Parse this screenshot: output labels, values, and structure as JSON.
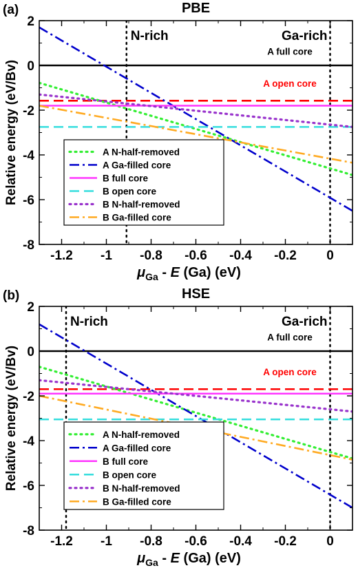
{
  "chart_data": [
    {
      "type": "line",
      "panel_label": "(a)",
      "title": "PBE",
      "ylabel": "Relative energy (eV/Bv)",
      "xlabel_mu": "μ",
      "xlabel_sub": "Ga",
      "xlabel_mid": " - ",
      "xlabel_e": "E",
      "xlabel_rest": " (Ga) (eV)",
      "xlim": [
        -1.3,
        0.1
      ],
      "ylim": [
        -8,
        2
      ],
      "xticks": [
        -1.2,
        -1,
        -0.8,
        -0.6,
        -0.4,
        -0.2,
        0
      ],
      "yticks": [
        -8,
        -6,
        -4,
        -2,
        0,
        2
      ],
      "xtick_labels": [
        "-1.2",
        "-1",
        "-0.8",
        "-0.6",
        "-0.4",
        "-0.2",
        "0"
      ],
      "ytick_labels": [
        "-8",
        "-6",
        "-4",
        "-2",
        "0",
        "2"
      ],
      "vlines": [
        {
          "x": -0.91,
          "label": "N-rich"
        },
        {
          "x": 0,
          "label": "Ga-rich"
        }
      ],
      "legend_placement": "lower-left",
      "series": [
        {
          "name": "A full core",
          "inline_label": true,
          "color": "#000000",
          "dash": "solid",
          "x": [
            -1.3,
            0.1
          ],
          "y": [
            0.0,
            0.0
          ]
        },
        {
          "name": "A open core",
          "inline_label": true,
          "color": "#ff0000",
          "dash": "dashed",
          "x": [
            -1.3,
            0.1
          ],
          "y": [
            -1.58,
            -1.58
          ]
        },
        {
          "name": "A N-half-removed",
          "inline_label": false,
          "color": "#33ee33",
          "dash": "dotted",
          "x": [
            -1.3,
            0.1
          ],
          "y": [
            -0.78,
            -4.9
          ]
        },
        {
          "name": "A Ga-filled core",
          "inline_label": false,
          "color": "#0000cc",
          "dash": "dashdot",
          "x": [
            -1.3,
            0.1
          ],
          "y": [
            1.7,
            -6.5
          ]
        },
        {
          "name": "B full core",
          "inline_label": false,
          "color": "#ff33ff",
          "dash": "solid",
          "x": [
            -1.3,
            0.1
          ],
          "y": [
            -1.8,
            -1.8
          ]
        },
        {
          "name": "B open core",
          "inline_label": false,
          "color": "#33dddd",
          "dash": "dashed",
          "x": [
            -1.3,
            0.1
          ],
          "y": [
            -2.75,
            -2.75
          ]
        },
        {
          "name": "B N-half-removed",
          "inline_label": false,
          "color": "#9933cc",
          "dash": "dotted",
          "x": [
            -1.3,
            0.1
          ],
          "y": [
            -1.3,
            -2.75
          ]
        },
        {
          "name": "B Ga-filled core",
          "inline_label": false,
          "color": "#ffaa22",
          "dash": "dashdot",
          "x": [
            -1.3,
            0.1
          ],
          "y": [
            -1.8,
            -4.35
          ]
        }
      ]
    },
    {
      "type": "line",
      "panel_label": "(b)",
      "title": "HSE",
      "ylabel": "Relative energy (eV/Bv)",
      "xlabel_mu": "μ",
      "xlabel_sub": "Ga",
      "xlabel_mid": " - ",
      "xlabel_e": "E",
      "xlabel_rest": " (Ga) (eV)",
      "xlim": [
        -1.3,
        0.1
      ],
      "ylim": [
        -8,
        2
      ],
      "xticks": [
        -1.2,
        -1,
        -0.8,
        -0.6,
        -0.4,
        -0.2,
        0
      ],
      "yticks": [
        -8,
        -6,
        -4,
        -2,
        0,
        2
      ],
      "xtick_labels": [
        "-1.2",
        "-1",
        "-0.8",
        "-0.6",
        "-0.4",
        "-0.2",
        "0"
      ],
      "ytick_labels": [
        "-8",
        "-6",
        "-4",
        "-2",
        "0",
        "2"
      ],
      "vlines": [
        {
          "x": -1.18,
          "label": "N-rich"
        },
        {
          "x": 0,
          "label": "Ga-rich"
        }
      ],
      "legend_placement": "lower-left",
      "series": [
        {
          "name": "A full core",
          "inline_label": true,
          "color": "#000000",
          "dash": "solid",
          "x": [
            -1.3,
            0.1
          ],
          "y": [
            0.0,
            0.0
          ]
        },
        {
          "name": "A open core",
          "inline_label": true,
          "color": "#ff0000",
          "dash": "dashed",
          "x": [
            -1.3,
            0.1
          ],
          "y": [
            -1.7,
            -1.7
          ]
        },
        {
          "name": "A N-half-removed",
          "inline_label": false,
          "color": "#33ee33",
          "dash": "dotted",
          "x": [
            -1.3,
            0.1
          ],
          "y": [
            -0.7,
            -4.8
          ]
        },
        {
          "name": "A Ga-filled core",
          "inline_label": false,
          "color": "#0000cc",
          "dash": "dashdot",
          "x": [
            -1.3,
            0.1
          ],
          "y": [
            1.2,
            -7.0
          ]
        },
        {
          "name": "B full core",
          "inline_label": false,
          "color": "#ff33ff",
          "dash": "solid",
          "x": [
            -1.3,
            0.1
          ],
          "y": [
            -1.9,
            -1.9
          ]
        },
        {
          "name": "B open core",
          "inline_label": false,
          "color": "#33dddd",
          "dash": "dashed",
          "x": [
            -1.3,
            0.1
          ],
          "y": [
            -3.05,
            -3.05
          ]
        },
        {
          "name": "B N-half-removed",
          "inline_label": false,
          "color": "#9933cc",
          "dash": "dotted",
          "x": [
            -1.3,
            0.1
          ],
          "y": [
            -1.3,
            -2.7
          ]
        },
        {
          "name": "B Ga-filled core",
          "inline_label": false,
          "color": "#ffaa22",
          "dash": "dashdot",
          "x": [
            -1.3,
            0.1
          ],
          "y": [
            -2.0,
            -4.85
          ]
        }
      ]
    }
  ]
}
